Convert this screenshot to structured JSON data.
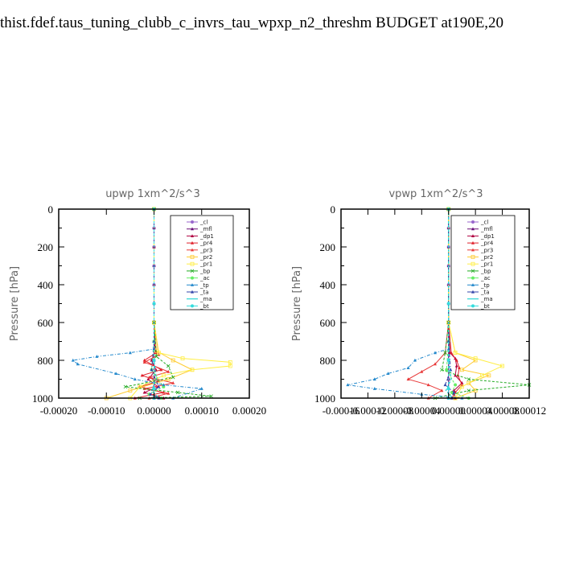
{
  "title": "thist.fdef.taus_tuning_clubb_c_invrs_tau_wpxp_n2_threshm  BUDGET at190E,20",
  "legend_entries": [
    "_cl",
    "_mfl",
    "_dp1",
    "_pr4",
    "_pr3",
    "_pr2",
    "_pr1",
    "_bp",
    "_ac",
    "_tp",
    "_ta",
    "_ma",
    "_bt"
  ],
  "series_colors": [
    "#9966cc",
    "#6b0f7a",
    "#b00040",
    "#e0202a",
    "#e83838",
    "#ffcc33",
    "#ffee44",
    "#22aa22",
    "#66ee66",
    "#2288cc",
    "#3344aa",
    "#00cccc",
    "#33dddd"
  ],
  "chart_data": [
    {
      "type": "line",
      "title": "upwp   1xm^2/s^3",
      "xlabel": "",
      "ylabel": "Pressure  [hPa]",
      "xlim": [
        -0.0002,
        0.0002
      ],
      "ylim": [
        1000,
        0
      ],
      "xticks": [
        -0.0002,
        -0.0001,
        0,
        0.0001,
        0.0002
      ],
      "xtick_labels": [
        "-0.00020",
        "-0.00010",
        "0.00000",
        "0.00010",
        "0.00020"
      ],
      "yticks": [
        0,
        200,
        400,
        600,
        800,
        1000
      ],
      "ytick_labels": [
        "0",
        "200",
        "400",
        "600",
        "800",
        "1000"
      ],
      "series": [
        {
          "name": "_cl",
          "x": [
            0,
            0,
            0,
            0,
            0,
            0,
            0,
            0,
            0,
            0,
            0
          ],
          "y": [
            0,
            100,
            200,
            300,
            400,
            500,
            600,
            700,
            800,
            900,
            1000
          ]
        },
        {
          "name": "_mfl",
          "x": [
            0,
            0,
            0,
            0,
            0,
            0,
            0,
            0,
            0,
            0,
            0
          ],
          "y": [
            0,
            100,
            200,
            300,
            400,
            500,
            600,
            700,
            800,
            900,
            1000
          ]
        },
        {
          "name": "_dp1",
          "x": [
            0,
            0,
            0,
            2e-06,
            -5e-06,
            4e-06,
            -1.2e-05,
            8e-06,
            -2e-05,
            2e-05
          ],
          "y": [
            0,
            200,
            600,
            750,
            800,
            850,
            900,
            940,
            970,
            1000
          ]
        },
        {
          "name": "_pr4",
          "x": [
            0,
            0,
            5e-06,
            -2e-05,
            1.5e-05,
            -2.5e-05,
            1e-05,
            -3e-05,
            2e-05,
            -4e-05
          ],
          "y": [
            0,
            600,
            760,
            800,
            850,
            880,
            910,
            940,
            970,
            1000
          ]
        },
        {
          "name": "_pr3",
          "x": [
            0,
            0,
            1e-05,
            -2e-05,
            3e-05,
            -1e-05,
            4e-05,
            -2e-05,
            3e-05,
            -1e-05
          ],
          "y": [
            0,
            600,
            770,
            810,
            860,
            890,
            920,
            950,
            975,
            1000
          ]
        },
        {
          "name": "_pr2",
          "x": [
            0,
            0,
            5e-06,
            4e-05,
            8e-05,
            3e-05,
            -5e-05,
            -0.0001
          ],
          "y": [
            0,
            600,
            750,
            800,
            850,
            900,
            960,
            1000
          ]
        },
        {
          "name": "_pr1",
          "x": [
            0,
            0,
            1e-05,
            6e-05,
            0.00016,
            0.00016,
            8e-05,
            2e-05,
            -3e-05,
            -5e-05
          ],
          "y": [
            0,
            600,
            760,
            790,
            810,
            830,
            850,
            880,
            940,
            1000
          ]
        },
        {
          "name": "_bp",
          "x": [
            0,
            0,
            5e-06,
            3e-05,
            4e-05,
            -6e-05,
            5e-05,
            0.00012,
            -3e-05
          ],
          "y": [
            0,
            600,
            780,
            830,
            890,
            940,
            970,
            990,
            1000
          ]
        },
        {
          "name": "_ac",
          "x": [
            0,
            0,
            -5e-06,
            2e-05,
            -1e-05,
            1.5e-05
          ],
          "y": [
            0,
            700,
            850,
            940,
            980,
            1000
          ]
        },
        {
          "name": "_tp",
          "x": [
            0,
            0,
            -5e-05,
            -0.00012,
            -0.00017,
            -0.00016,
            -8e-05,
            -4e-05,
            2e-05,
            0.0001,
            4e-05
          ],
          "y": [
            0,
            740,
            760,
            780,
            800,
            820,
            870,
            900,
            930,
            950,
            1000
          ]
        },
        {
          "name": "_ta",
          "x": [
            0,
            0,
            -5e-06,
            1e-05,
            -8e-06,
            1e-05
          ],
          "y": [
            0,
            700,
            850,
            940,
            980,
            1000
          ]
        },
        {
          "name": "_ma",
          "x": [
            0,
            0,
            5e-06,
            -5e-06,
            1e-05
          ],
          "y": [
            0,
            800,
            900,
            960,
            1000
          ]
        },
        {
          "name": "_bt",
          "x": [
            0,
            0,
            0,
            0,
            0
          ],
          "y": [
            0,
            500,
            800,
            950,
            1000
          ]
        }
      ]
    },
    {
      "type": "line",
      "title": "vpwp   1xm^2/s^3",
      "xlabel": "",
      "ylabel": "Pressure  [hPa]",
      "xlim": [
        -0.00016,
        0.00012
      ],
      "ylim": [
        1000,
        0
      ],
      "xticks": [
        -0.00016,
        -0.00012,
        -8e-05,
        -4e-05,
        0,
        4e-05,
        8e-05,
        0.00012
      ],
      "xtick_labels": [
        "-0.00016",
        "-0.00012",
        "-0.00008",
        "-0.00004",
        "0.00000",
        "0.00004",
        "0.00008",
        "0.00012"
      ],
      "yticks": [
        0,
        200,
        400,
        600,
        800,
        1000
      ],
      "ytick_labels": [
        "0",
        "200",
        "400",
        "600",
        "800",
        "1000"
      ],
      "series": [
        {
          "name": "_cl",
          "x": [
            0,
            0,
            0,
            0,
            0,
            0,
            0,
            0,
            0,
            0,
            0
          ],
          "y": [
            0,
            100,
            200,
            300,
            400,
            500,
            600,
            700,
            800,
            900,
            1000
          ]
        },
        {
          "name": "_mfl",
          "x": [
            0,
            0,
            0,
            0,
            0,
            0,
            0,
            0,
            0,
            0,
            0
          ],
          "y": [
            0,
            100,
            200,
            300,
            400,
            500,
            600,
            700,
            800,
            900,
            1000
          ]
        },
        {
          "name": "_dp1",
          "x": [
            0,
            0,
            2e-06,
            1e-05,
            1.2e-05,
            1e-05,
            2e-05,
            8e-06,
            1e-05
          ],
          "y": [
            0,
            600,
            760,
            790,
            830,
            880,
            920,
            960,
            1000
          ]
        },
        {
          "name": "_pr4",
          "x": [
            0,
            0,
            4e-06,
            1.2e-05,
            1.6e-05,
            1.4e-05,
            2e-05,
            1e-05,
            5e-06
          ],
          "y": [
            0,
            600,
            760,
            800,
            840,
            880,
            930,
            970,
            1000
          ]
        },
        {
          "name": "_pr3",
          "x": [
            0,
            0,
            -5e-06,
            -2e-05,
            -4e-05,
            -6e-05,
            -3e-05,
            -1e-05,
            -3e-05
          ],
          "y": [
            0,
            600,
            760,
            820,
            860,
            900,
            930,
            960,
            1000
          ]
        },
        {
          "name": "_pr2",
          "x": [
            0,
            0,
            1e-05,
            4e-05,
            2e-05,
            6e-05,
            3e-05,
            4e-05,
            1e-05
          ],
          "y": [
            0,
            600,
            760,
            800,
            850,
            880,
            920,
            960,
            1000
          ]
        },
        {
          "name": "_pr1",
          "x": [
            0,
            0,
            1e-05,
            4e-05,
            8e-05,
            5e-05,
            2e-05,
            1e-05
          ],
          "y": [
            0,
            600,
            760,
            790,
            830,
            880,
            940,
            1000
          ]
        },
        {
          "name": "_bp",
          "x": [
            0,
            0,
            -5e-06,
            -1e-05,
            3e-05,
            0.00012,
            3e-05,
            -2e-05
          ],
          "y": [
            0,
            600,
            760,
            850,
            900,
            930,
            960,
            1000
          ]
        },
        {
          "name": "_ac",
          "x": [
            0,
            0,
            -3e-06,
            1e-05,
            5e-06,
            3e-05
          ],
          "y": [
            0,
            700,
            850,
            930,
            970,
            1000
          ]
        },
        {
          "name": "_tp",
          "x": [
            0,
            0,
            -2e-05,
            -5e-05,
            -6e-05,
            -9e-05,
            -0.00011,
            -0.00015,
            -0.00011,
            -4e-05,
            2e-05
          ],
          "y": [
            0,
            740,
            760,
            800,
            840,
            870,
            900,
            930,
            950,
            980,
            1000
          ]
        },
        {
          "name": "_ta",
          "x": [
            0,
            0,
            3e-06,
            -5e-06,
            8e-06,
            5e-06
          ],
          "y": [
            0,
            700,
            850,
            930,
            970,
            1000
          ]
        },
        {
          "name": "_ma",
          "x": [
            0,
            0,
            4e-06,
            -4e-06,
            6e-06
          ],
          "y": [
            0,
            800,
            900,
            960,
            1000
          ]
        },
        {
          "name": "_bt",
          "x": [
            0,
            0,
            0,
            0,
            0
          ],
          "y": [
            0,
            500,
            800,
            950,
            1000
          ]
        }
      ]
    }
  ]
}
